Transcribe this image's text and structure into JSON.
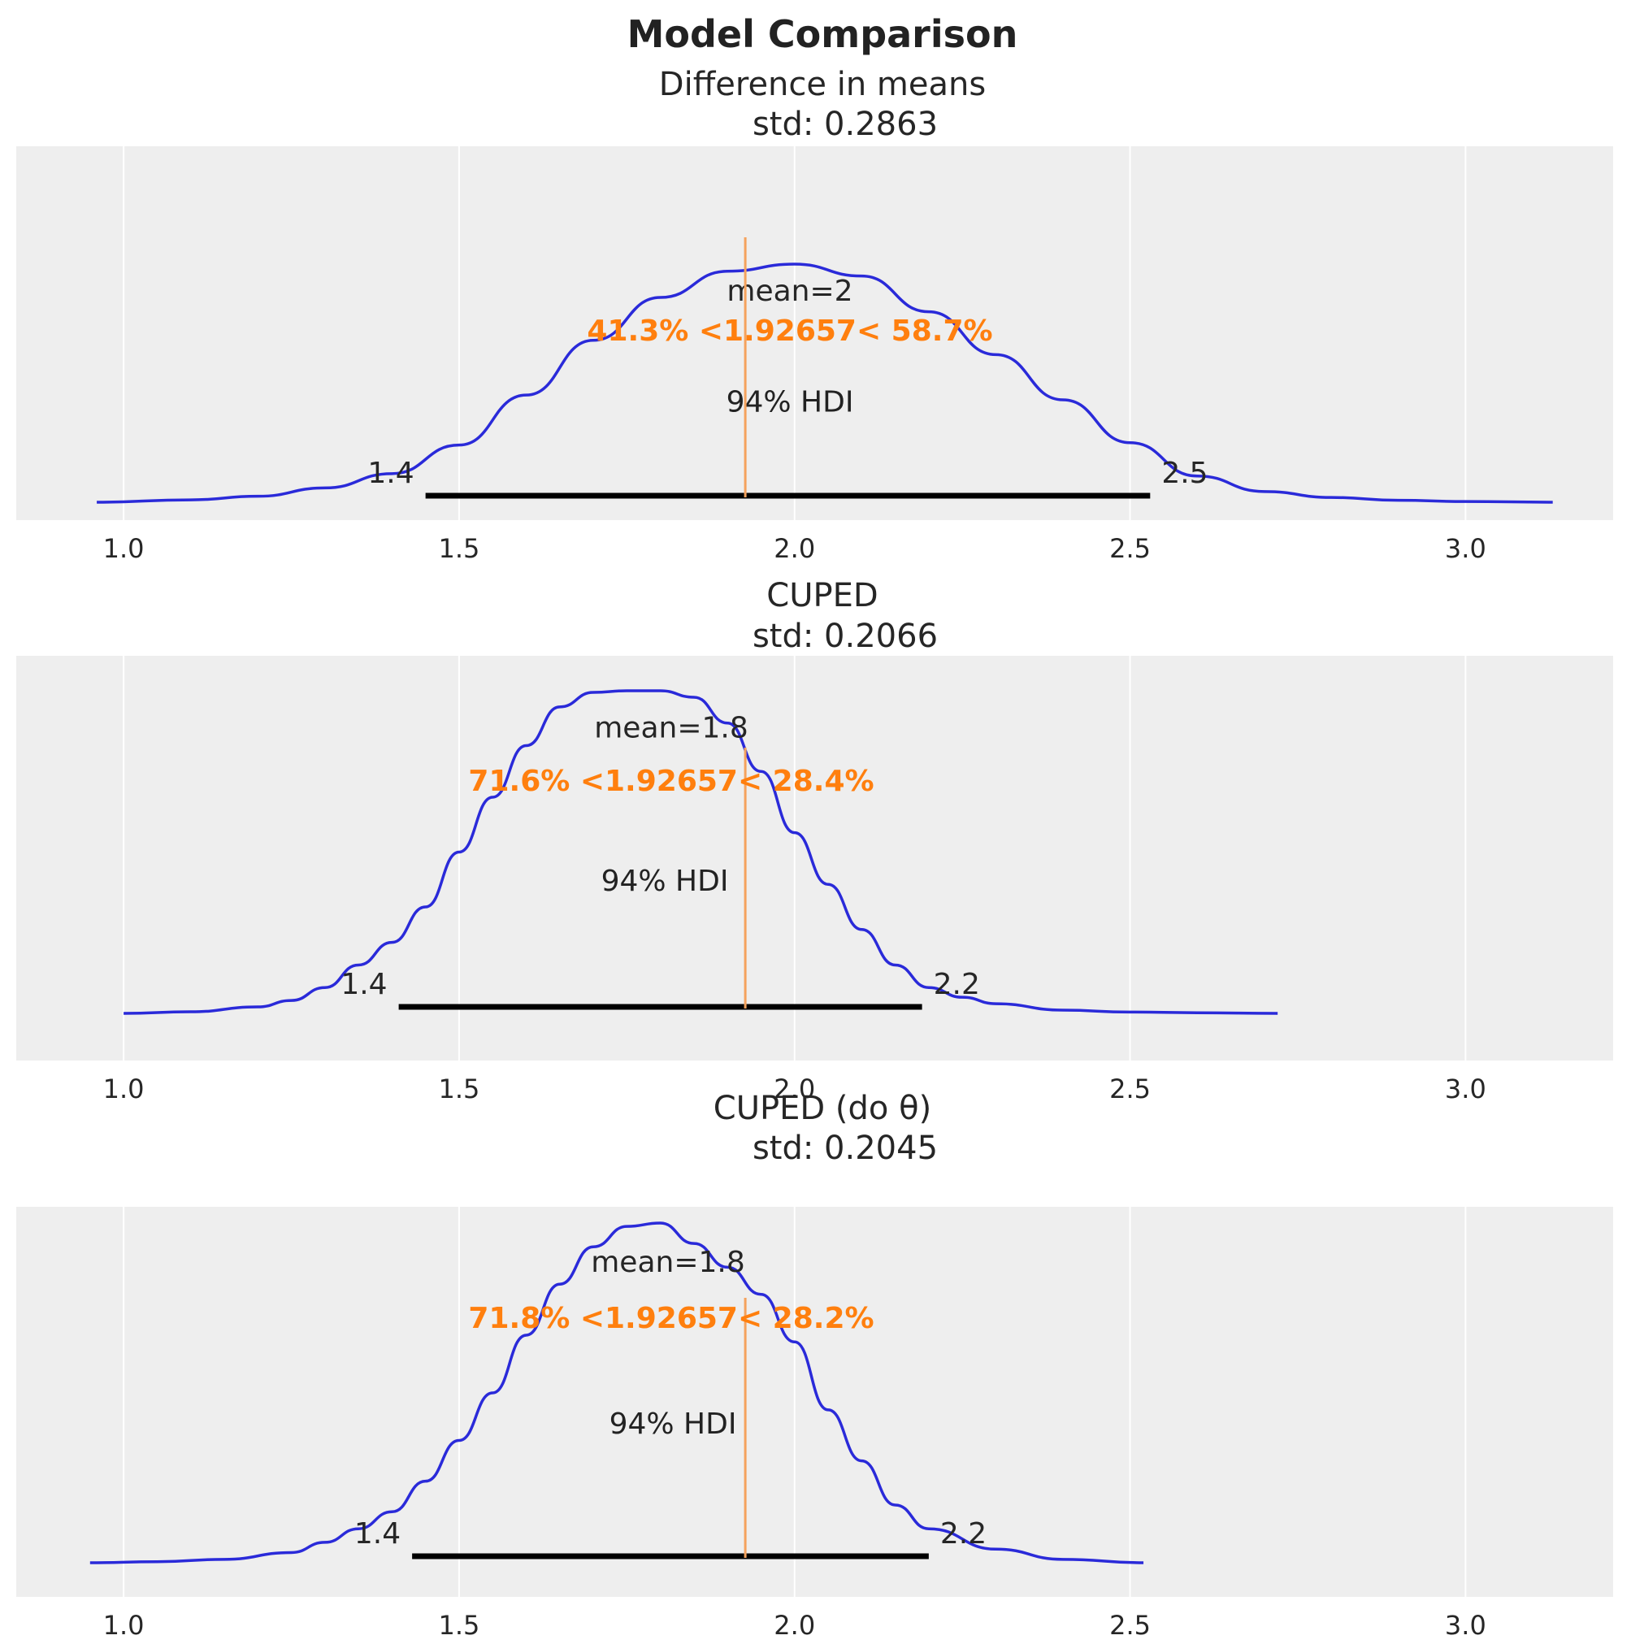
{
  "colors": {
    "kde": "#2a2ad9",
    "reference": "#ff7f0e",
    "hdi": "#000000",
    "panel_bg": "#eeeeee"
  },
  "chart_data": {
    "type": "density",
    "title": "Model Comparison",
    "reference_value": 1.92657,
    "panels": [
      {
        "title_line1": "Difference in means",
        "title_line2": "std: 0.2863",
        "mean_label": "mean=2",
        "ref_label": "41.3% <1.92657< 58.7%",
        "hdi_label": "94% HDI",
        "hdi": [
          1.45,
          2.53
        ],
        "hdi_low_label": "1.4",
        "hdi_high_label": "2.5",
        "xlim": [
          0.84,
          3.22
        ],
        "x_ticks": [
          {
            "value": 1.0,
            "label": "1.0"
          },
          {
            "value": 1.5,
            "label": "1.5"
          },
          {
            "value": 2.0,
            "label": "2.0"
          },
          {
            "value": 2.5,
            "label": "2.5"
          },
          {
            "value": 3.0,
            "label": "3.0"
          }
        ],
        "kde_x": [
          0.96,
          1.1,
          1.2,
          1.3,
          1.4,
          1.5,
          1.6,
          1.7,
          1.8,
          1.9,
          2.0,
          2.1,
          2.2,
          2.3,
          2.4,
          2.5,
          2.6,
          2.7,
          2.8,
          2.9,
          3.0,
          3.13
        ],
        "kde_y": [
          0.0,
          0.01,
          0.025,
          0.06,
          0.12,
          0.24,
          0.45,
          0.68,
          0.86,
          0.97,
          1.0,
          0.95,
          0.8,
          0.62,
          0.43,
          0.25,
          0.11,
          0.045,
          0.02,
          0.008,
          0.003,
          0.0
        ]
      },
      {
        "title_line1": "CUPED",
        "title_line2": "std: 0.2066",
        "mean_label": "mean=1.8",
        "ref_label": "71.6% <1.92657< 28.4%",
        "hdi_label": "94% HDI",
        "hdi": [
          1.41,
          2.19
        ],
        "hdi_low_label": "1.4",
        "hdi_high_label": "2.2",
        "xlim": [
          0.84,
          3.22
        ],
        "x_ticks": [
          {
            "value": 1.0,
            "label": "1.0"
          },
          {
            "value": 1.5,
            "label": "1.5"
          },
          {
            "value": 2.0,
            "label": "2.0"
          },
          {
            "value": 2.5,
            "label": "2.5"
          },
          {
            "value": 3.0,
            "label": "3.0"
          }
        ],
        "kde_x": [
          1.0,
          1.1,
          1.2,
          1.25,
          1.3,
          1.35,
          1.4,
          1.45,
          1.5,
          1.55,
          1.6,
          1.65,
          1.7,
          1.75,
          1.8,
          1.85,
          1.9,
          1.95,
          2.0,
          2.05,
          2.1,
          2.15,
          2.2,
          2.25,
          2.3,
          2.4,
          2.5,
          2.6,
          2.72
        ],
        "kde_y": [
          0.0,
          0.005,
          0.02,
          0.04,
          0.08,
          0.15,
          0.22,
          0.33,
          0.5,
          0.67,
          0.83,
          0.95,
          0.995,
          1.0,
          1.0,
          0.98,
          0.9,
          0.75,
          0.56,
          0.4,
          0.26,
          0.15,
          0.08,
          0.05,
          0.03,
          0.01,
          0.004,
          0.002,
          0.0
        ]
      },
      {
        "title_line1": "CUPED (do θ)",
        "title_line2": "std: 0.2045",
        "mean_label": "mean=1.8",
        "ref_label": "71.8% <1.92657< 28.2%",
        "hdi_label": "94% HDI",
        "hdi": [
          1.43,
          2.2
        ],
        "hdi_low_label": "1.4",
        "hdi_high_label": "2.2",
        "xlim": [
          0.84,
          3.22
        ],
        "x_ticks": [
          {
            "value": 1.0,
            "label": "1.0"
          },
          {
            "value": 1.5,
            "label": "1.5"
          },
          {
            "value": 2.0,
            "label": "2.0"
          },
          {
            "value": 2.5,
            "label": "2.5"
          },
          {
            "value": 3.0,
            "label": "3.0"
          }
        ],
        "kde_x": [
          0.95,
          1.05,
          1.15,
          1.25,
          1.3,
          1.35,
          1.4,
          1.45,
          1.5,
          1.55,
          1.6,
          1.65,
          1.7,
          1.75,
          1.8,
          1.85,
          1.9,
          1.95,
          2.0,
          2.05,
          2.1,
          2.15,
          2.2,
          2.3,
          2.4,
          2.52
        ],
        "kde_y": [
          0.0,
          0.003,
          0.01,
          0.03,
          0.06,
          0.1,
          0.15,
          0.24,
          0.36,
          0.5,
          0.67,
          0.82,
          0.93,
          0.99,
          1.0,
          0.94,
          0.87,
          0.79,
          0.65,
          0.45,
          0.3,
          0.17,
          0.1,
          0.04,
          0.01,
          0.0
        ]
      }
    ]
  }
}
